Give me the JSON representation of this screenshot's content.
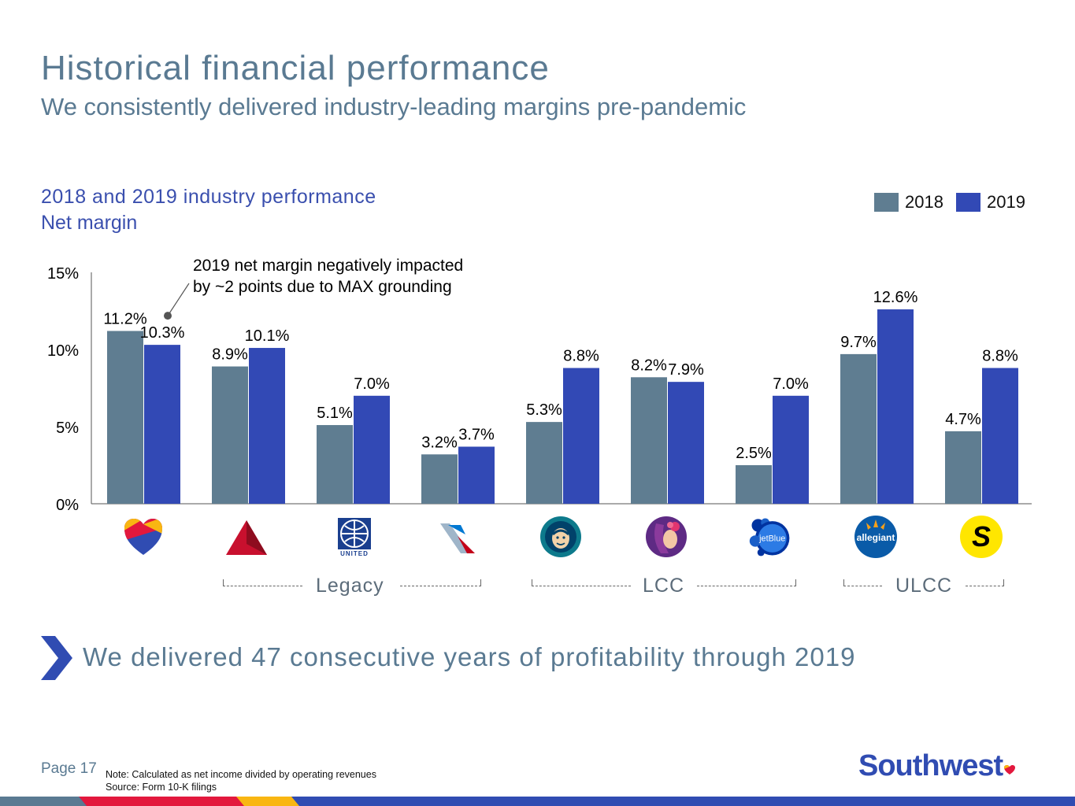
{
  "header": {
    "title": "Historical financial performance",
    "subtitle": "We consistently delivered industry-leading margins pre-pandemic"
  },
  "chart_data": {
    "type": "bar",
    "title": "2018 and 2019 industry performance",
    "subtitle": "Net margin",
    "categories": [
      "Southwest",
      "Delta",
      "United",
      "American",
      "Alaska",
      "Hawaiian",
      "jetBlue",
      "allegiant",
      "Spirit"
    ],
    "series": [
      {
        "name": "2018",
        "color": "#5f7d91",
        "values": [
          11.2,
          8.9,
          5.1,
          3.2,
          5.3,
          8.2,
          2.5,
          9.7,
          4.7
        ],
        "labels": [
          "11.2%",
          "8.9%",
          "5.1%",
          "3.2%",
          "5.3%",
          "8.2%",
          "2.5%",
          "9.7%",
          "4.7%"
        ]
      },
      {
        "name": "2019",
        "color": "#3249b5",
        "values": [
          10.3,
          10.1,
          7.0,
          3.7,
          8.8,
          7.9,
          7.0,
          12.6,
          8.8
        ],
        "labels": [
          "10.3%",
          "10.1%",
          "7.0%",
          "3.7%",
          "8.8%",
          "7.9%",
          "7.0%",
          "12.6%",
          "8.8%"
        ]
      }
    ],
    "ylim": [
      0,
      15
    ],
    "yticks": [
      0,
      5,
      10,
      15
    ],
    "ytick_labels": [
      "0%",
      "5%",
      "10%",
      "15%"
    ],
    "legend_position": "top-right",
    "grid": false,
    "annotation": {
      "line1": "2019 net margin negatively impacted",
      "line2": "by ~2 points due to MAX grounding"
    },
    "groups": [
      {
        "label": "Legacy",
        "from": 1,
        "to": 3
      },
      {
        "label": "LCC",
        "from": 4,
        "to": 6
      },
      {
        "label": "ULCC",
        "from": 7,
        "to": 8
      }
    ]
  },
  "logos": {
    "jetblue_text": "jetBlue",
    "allegiant_text": "allegiant",
    "spirit_text": "S",
    "united_text": "UNITED"
  },
  "takeaway": "We delivered 47 consecutive years of profitability through 2019",
  "footer": {
    "page": "Page 17",
    "note": "Note: Calculated as net income divided by operating revenues",
    "source": "Source: Form 10-K filings",
    "brand": "Southwest"
  },
  "colors": {
    "accent": "#304cb2",
    "heading": "#5a7a92",
    "bar2018": "#5f7d91",
    "bar2019": "#3249b5"
  }
}
